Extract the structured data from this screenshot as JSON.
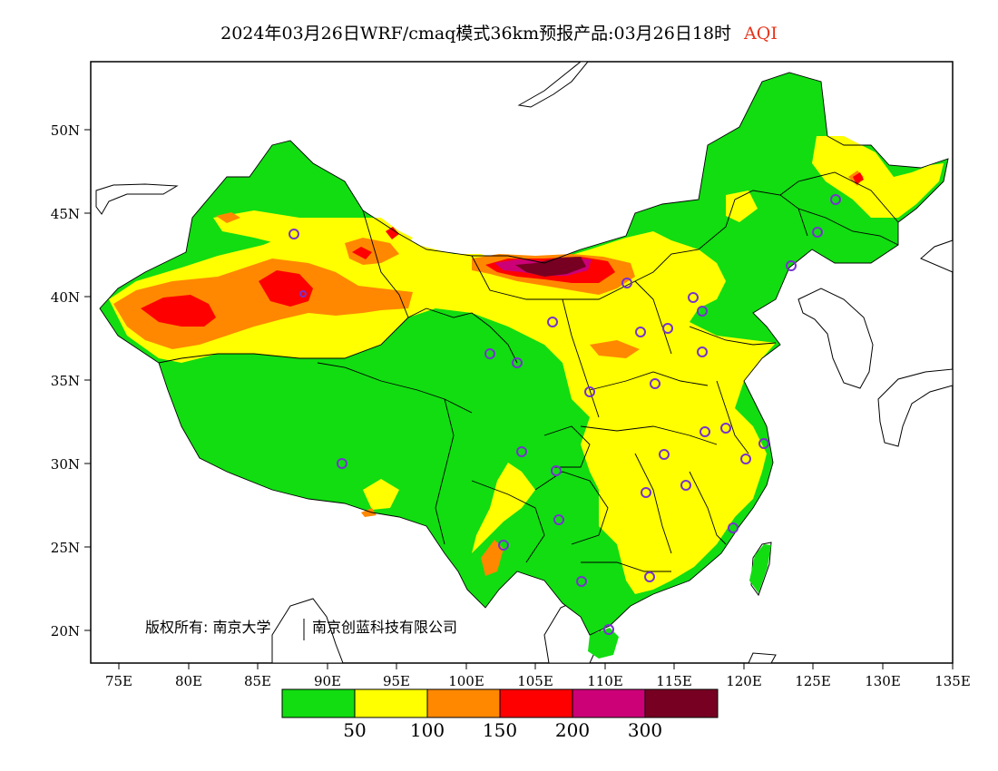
{
  "title": {
    "main": "2024年03月26日WRF/cmaq模式36km预报产品:03月26日18时",
    "variable": "AQI",
    "variable_color": "#e8331a"
  },
  "map": {
    "lon_ticks": [
      "75E",
      "80E",
      "85E",
      "90E",
      "95E",
      "100E",
      "105E",
      "110E",
      "115E",
      "120E",
      "125E",
      "130E",
      "135E"
    ],
    "lat_ticks": [
      "50N",
      "45N",
      "40N",
      "35N",
      "30N",
      "25N",
      "20N"
    ],
    "copyright_owner": "版权所有: 南京大学",
    "copyright_partner": "南京创蓝科技有限公司",
    "colors": {
      "background": "#ffffff",
      "good": "#11dd11",
      "moderate": "#ffff00",
      "unhealthy_sensitive": "#ff8800",
      "unhealthy": "#ff0000",
      "very_unhealthy": "#cc0077",
      "hazardous": "#770022",
      "station_marker": "#7733cc"
    }
  },
  "legend": {
    "swatches": [
      {
        "level": "0-50",
        "color": "#11dd11"
      },
      {
        "level": "50-100",
        "color": "#ffff00"
      },
      {
        "level": "100-150",
        "color": "#ff8800"
      },
      {
        "level": "150-200",
        "color": "#ff0000"
      },
      {
        "level": "200-300",
        "color": "#cc0077"
      },
      {
        "level": ">300",
        "color": "#770022"
      }
    ],
    "labels": [
      "50",
      "100",
      "150",
      "200",
      "300"
    ]
  }
}
